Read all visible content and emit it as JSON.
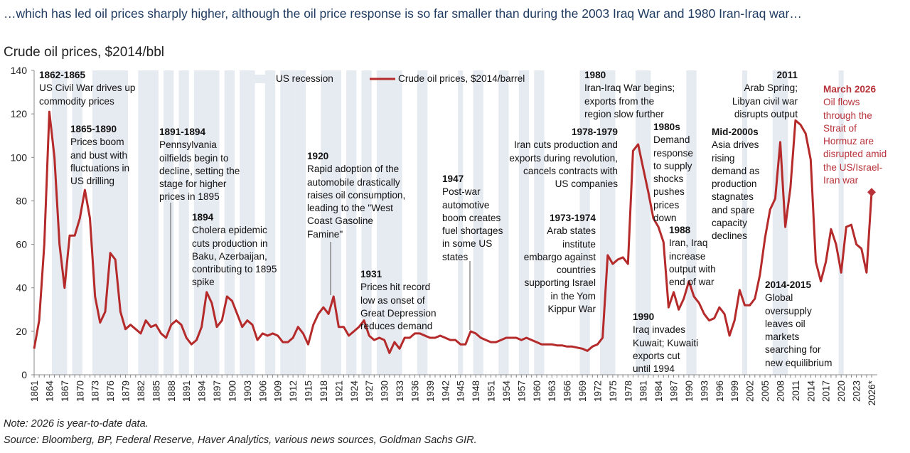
{
  "headline": "…which has led oil prices sharply higher, although the oil price response is so far smaller than during the 2003 Iraq War and 1980 Iran-Iraq war…",
  "subtitle": "Crude oil prices, $2014/bbl",
  "notes": {
    "note": "Note: 2026 is year-to-date data.",
    "source": "Source: Bloomberg, BP, Federal Reserve, Haver Analytics, various news sources, Goldman Sachs GIR."
  },
  "colors": {
    "line": "#b52a2a",
    "recession": "#e6eaf1",
    "highlight": "#b8323a",
    "headline": "#1f3a5f"
  },
  "annotations": [
    {
      "title": "1862-1865",
      "text": "US Civil War drives up\ncommodity prices"
    },
    {
      "title": "1865-1890",
      "text": "Prices boom\nand bust with\nfluctuations in\nUS drilling"
    },
    {
      "title": "1891-1894",
      "text": "Pennsylvania\noilfields begin to\ndecline, setting the\nstage for higher\nprices in 1895"
    },
    {
      "title": "1894",
      "text": "Cholera epidemic\ncuts production in\nBaku, Azerbaijan,\ncontributing to 1895\nspike"
    },
    {
      "title": "1920",
      "text": "Rapid adoption of the\nautomobile drastically\nraises oil consumption,\nleading to the \"West\nCoast Gasoline\nFamine\""
    },
    {
      "title": "1931",
      "text": "Prices hit record\nlow as onset of\nGreat Depression\nreduces demand"
    },
    {
      "title": "1947",
      "text": "Post-war\nautomotive\nboom creates\nfuel shortages\nin some US\nstates"
    },
    {
      "title": "1973-1974",
      "text": "Arab states\ninstitute\nembargo against\ncountries\nsupporting Israel\nin the Yom\nKippur War"
    },
    {
      "title": "1978-1979",
      "text": "Iran cuts production and\nexports during revolution,\ncancels contracts with\nUS companies"
    },
    {
      "title": "1980",
      "text": "Iran-Iraq War begins;\nexports from the\nregion slow further"
    },
    {
      "title": "1980s",
      "text": "Demand\nresponse\nto supply\nshocks\npushes\nprices\ndown"
    },
    {
      "title": "1988",
      "text": "Iran, Iraq\nincrease\noutput with\nend of war"
    },
    {
      "title": "1990",
      "text": "Iraq invades\nKuwait; Kuwaiti\nexports cut\nuntil 1994"
    },
    {
      "title": "Mid-2000s",
      "text": "Asia drives\nrising\ndemand as\nproduction\nstagnates\nand spare\ncapacity\ndeclines"
    },
    {
      "title": "2011",
      "text": "Arab Spring;\nLibyan civil war\ndisrupts output"
    },
    {
      "title": "2014-2015",
      "text": "Global\noversupply\nleaves oil\nmarkets\nsearching for\nnew equilibrium"
    },
    {
      "title": "March 2026",
      "text": "Oil flows\nthrough the\nStrait of\nHormuz are\ndisrupted amid\nthe US/Israel-\nIran war"
    }
  ],
  "chart_data": {
    "type": "line",
    "title": "",
    "xlabel": "",
    "ylabel": "",
    "ylim": [
      0,
      140
    ],
    "yticks": [
      0,
      20,
      40,
      60,
      80,
      100,
      120,
      140
    ],
    "xlim": [
      1861,
      2026
    ],
    "xtick_labels": [
      "1861",
      "1864",
      "1867",
      "1870",
      "1873",
      "1876",
      "1879",
      "1882",
      "1885",
      "1888",
      "1891",
      "1894",
      "1897",
      "1900",
      "1903",
      "1906",
      "1909",
      "1912",
      "1915",
      "1918",
      "1921",
      "1924",
      "1927",
      "1930",
      "1933",
      "1936",
      "1939",
      "1942",
      "1945",
      "1948",
      "1951",
      "1954",
      "1957",
      "1960",
      "1963",
      "1966",
      "1969",
      "1972",
      "1975",
      "1978",
      "1981",
      "1984",
      "1987",
      "1990",
      "1993",
      "1996",
      "1999",
      "2002",
      "2005",
      "2008",
      "2011",
      "2014",
      "2017",
      "2020",
      "2023",
      "2026*"
    ],
    "grid": false,
    "legend": "top",
    "legend_entries": [
      "US recession",
      "Crude oil prices, $2014/barrel"
    ],
    "series": [
      {
        "name": "Crude oil prices, $2014/barrel",
        "x_start": 1861,
        "values": [
          12,
          25,
          60,
          121,
          100,
          60,
          40,
          64,
          64,
          72,
          85,
          72,
          36,
          24,
          29,
          56,
          53,
          29,
          21,
          23,
          21,
          19,
          25,
          22,
          23,
          19,
          17,
          23,
          25,
          23,
          17,
          14,
          16,
          22,
          38,
          33,
          22,
          25,
          36,
          34,
          28,
          22,
          25,
          23,
          16,
          19,
          18,
          19,
          18,
          15,
          15,
          17,
          22,
          19,
          14,
          23,
          28,
          31,
          28,
          36,
          22,
          22,
          18,
          20,
          22,
          25,
          18,
          16,
          17,
          16,
          10,
          15,
          12,
          17,
          17,
          19,
          19,
          18,
          17,
          17,
          18,
          17,
          16,
          16,
          14,
          14,
          20,
          19,
          17,
          16,
          15,
          15,
          16,
          17,
          17,
          17,
          16,
          17,
          16,
          15,
          14,
          14,
          14,
          13.5,
          13.5,
          13,
          13,
          12.5,
          12,
          11,
          13,
          14,
          17,
          55,
          51,
          53,
          54,
          51,
          103,
          106,
          95,
          84,
          72,
          68,
          61,
          31,
          38,
          30,
          35,
          43,
          36,
          33,
          28,
          25,
          26,
          31,
          28,
          18,
          25,
          39,
          32,
          32,
          35,
          46,
          63,
          76,
          81,
          107,
          68,
          86,
          117,
          115,
          111,
          99,
          52,
          43,
          52,
          67,
          60,
          47,
          68,
          69,
          60,
          58,
          47,
          84
        ]
      }
    ],
    "highlight_point": {
      "x": "2026*",
      "y": 84
    },
    "recessions": [
      [
        1865,
        1867
      ],
      [
        1869,
        1870
      ],
      [
        1873,
        1879
      ],
      [
        1882,
        1885
      ],
      [
        1887,
        1888
      ],
      [
        1890,
        1891
      ],
      [
        1893,
        1894
      ],
      [
        1895,
        1897
      ],
      [
        1899,
        1900
      ],
      [
        1902,
        1904
      ],
      [
        1907,
        1908
      ],
      [
        1910,
        1912
      ],
      [
        1913,
        1914
      ],
      [
        1918,
        1919
      ],
      [
        1920,
        1921
      ],
      [
        1923,
        1924
      ],
      [
        1926,
        1927
      ],
      [
        1929,
        1933
      ],
      [
        1937,
        1938
      ],
      [
        1945,
        1945
      ],
      [
        1948,
        1949
      ],
      [
        1953,
        1954
      ],
      [
        1957,
        1958
      ],
      [
        1960,
        1961
      ],
      [
        1969,
        1970
      ],
      [
        1973,
        1975
      ],
      [
        1980,
        1980
      ],
      [
        1981,
        1982
      ],
      [
        1990,
        1991
      ],
      [
        2001,
        2001
      ],
      [
        2007,
        2009
      ],
      [
        2020,
        2020
      ]
    ]
  }
}
